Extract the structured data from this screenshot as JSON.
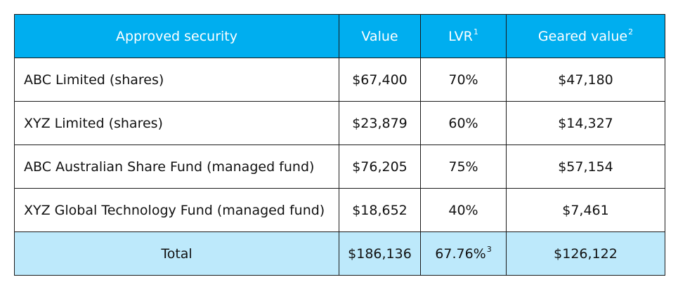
{
  "headers": {
    "security": "Approved security",
    "value": "Value",
    "lvr": "LVR",
    "lvr_note": "1",
    "geared": "Geared value",
    "geared_note": "2"
  },
  "rows": [
    {
      "security": "ABC Limited (shares)",
      "value": "$67,400",
      "lvr": "70%",
      "geared": "$47,180"
    },
    {
      "security": "XYZ Limited (shares)",
      "value": "$23,879",
      "lvr": "60%",
      "geared": "$14,327"
    },
    {
      "security": "ABC Australian Share Fund (managed fund)",
      "value": "$76,205",
      "lvr": "75%",
      "geared": "$57,154"
    },
    {
      "security": "XYZ Global Technology Fund (managed fund)",
      "value": "$18,652",
      "lvr": "40%",
      "geared": "$7,461"
    }
  ],
  "total": {
    "label": "Total",
    "value": "$186,136",
    "lvr": "67.76%",
    "lvr_note": "3",
    "geared": "$126,122"
  },
  "colors": {
    "header_bg": "#00aeef",
    "total_bg": "#bde9fb"
  }
}
